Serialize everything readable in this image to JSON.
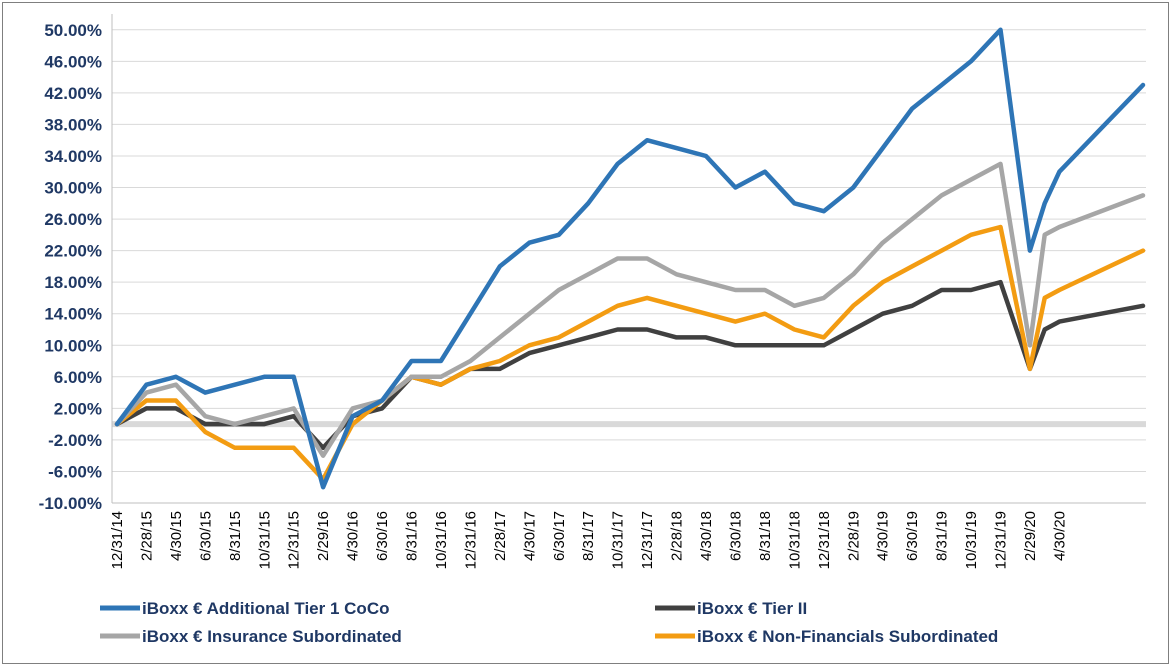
{
  "chart_data": {
    "type": "line",
    "y_unit": "%",
    "ylim": [
      -10,
      52
    ],
    "yticks": [
      -10,
      -6,
      -2,
      2,
      6,
      10,
      14,
      18,
      22,
      26,
      30,
      34,
      38,
      42,
      46,
      50
    ],
    "ytick_labels": [
      "-10.00%",
      "-6.00%",
      "-2.00%",
      "2.00%",
      "6.00%",
      "10.00%",
      "14.00%",
      "18.00%",
      "22.00%",
      "26.00%",
      "30.00%",
      "34.00%",
      "38.00%",
      "42.00%",
      "46.00%",
      "50.00%"
    ],
    "x_tick_labels": [
      "12/31/14",
      "2/28/15",
      "4/30/15",
      "6/30/15",
      "8/31/15",
      "10/31/15",
      "12/31/15",
      "2/29/16",
      "4/30/16",
      "6/30/16",
      "8/31/16",
      "10/31/16",
      "12/31/16",
      "2/28/17",
      "4/30/17",
      "6/30/17",
      "8/31/17",
      "10/31/17",
      "12/31/17",
      "2/28/18",
      "4/30/18",
      "6/30/18",
      "8/31/18",
      "10/31/18",
      "12/31/18",
      "2/28/19",
      "4/30/19",
      "6/30/19",
      "8/31/19",
      "10/31/19",
      "12/31/19",
      "2/29/20",
      "4/30/20"
    ],
    "x": [
      "12/31/14",
      "2/28/15",
      "4/30/15",
      "6/30/15",
      "8/31/15",
      "10/31/15",
      "12/31/15",
      "2/29/16",
      "4/30/16",
      "6/30/16",
      "8/31/16",
      "10/31/16",
      "12/31/16",
      "2/28/17",
      "4/30/17",
      "6/30/17",
      "8/31/17",
      "10/31/17",
      "12/31/17",
      "2/28/18",
      "4/30/18",
      "6/30/18",
      "8/31/18",
      "10/31/18",
      "12/31/18",
      "2/28/19",
      "4/30/19",
      "6/30/19",
      "8/31/19",
      "10/31/19",
      "12/31/19",
      "2/29/20",
      "3/31/20",
      "4/30/20",
      "6/10/20"
    ],
    "grid": true,
    "legend_position": "bottom",
    "series": [
      {
        "name": "iBoxx € Additional Tier 1 CoCo",
        "color": "#2e75b6",
        "values": [
          0,
          5,
          6,
          4,
          5,
          6,
          6,
          -8,
          1,
          3,
          8,
          8,
          14,
          20,
          23,
          24,
          28,
          33,
          36,
          35,
          34,
          30,
          32,
          28,
          27,
          30,
          35,
          40,
          43,
          46,
          50,
          22,
          28,
          32,
          43
        ]
      },
      {
        "name": "iBoxx € Tier II",
        "color": "#404040",
        "values": [
          0,
          2,
          2,
          0,
          0,
          0,
          1,
          -3,
          1,
          2,
          6,
          5,
          7,
          7,
          9,
          10,
          11,
          12,
          12,
          11,
          11,
          10,
          10,
          10,
          10,
          12,
          14,
          15,
          17,
          17,
          18,
          7,
          12,
          13,
          15
        ]
      },
      {
        "name": "iBoxx € Insurance Subordinated",
        "color": "#a6a6a6",
        "values": [
          0,
          4,
          5,
          1,
          0,
          1,
          2,
          -4,
          2,
          3,
          6,
          6,
          8,
          11,
          14,
          17,
          19,
          21,
          21,
          19,
          18,
          17,
          17,
          15,
          16,
          19,
          23,
          26,
          29,
          31,
          33,
          10,
          24,
          25,
          29
        ]
      },
      {
        "name": "iBoxx € Non-Financials Subordinated",
        "color": "#f39c12",
        "values": [
          0,
          3,
          3,
          -1,
          -3,
          -3,
          -3,
          -7,
          0,
          3,
          6,
          5,
          7,
          8,
          10,
          11,
          13,
          15,
          16,
          15,
          14,
          13,
          14,
          12,
          11,
          15,
          18,
          20,
          22,
          24,
          25,
          7,
          16,
          17,
          22
        ]
      }
    ]
  }
}
